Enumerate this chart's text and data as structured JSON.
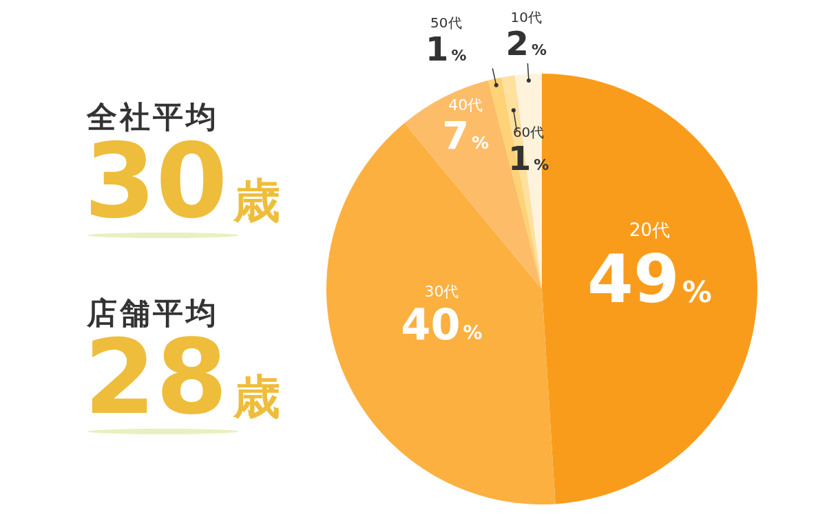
{
  "chart_data": [
    {
      "type": "other",
      "annotations": [
        "全社平均",
        "30歳",
        "店舗平均",
        "28歳"
      ]
    },
    {
      "type": "pie",
      "categories": [
        "20代",
        "30代",
        "40代",
        "50代",
        "60代",
        "10代"
      ],
      "values": [
        49,
        40,
        7,
        1,
        1,
        2
      ],
      "colors": [
        "#fa9c1b",
        "#fcb040",
        "#fdbd68",
        "#fed276",
        "#fee09f",
        "#fff3dc"
      ],
      "value_labels": [
        "49%",
        "40%",
        "7%",
        "1%",
        "1%",
        "2%"
      ]
    }
  ]
}
